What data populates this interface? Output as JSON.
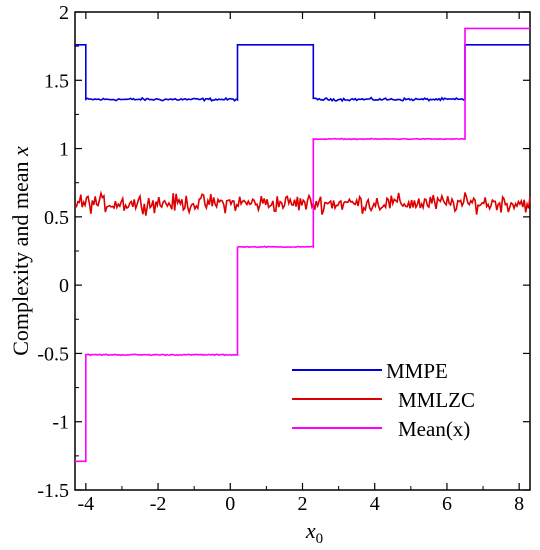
{
  "chart_data": {
    "type": "line",
    "xlabel": "x",
    "xlabel_subscript": "0",
    "ylabel_main": "Complexity and mean ",
    "ylabel_var": "x",
    "xlim": [
      -4.3,
      8.3
    ],
    "ylim": [
      -1.5,
      2.0
    ],
    "xticks": [
      -4,
      -2,
      0,
      2,
      4,
      6,
      8
    ],
    "xtick_labels": [
      "-4",
      "-2",
      "0",
      "2",
      "4",
      "6",
      "8"
    ],
    "yticks": [
      -1.5,
      -1,
      -0.5,
      0,
      0.5,
      1,
      1.5,
      2
    ],
    "ytick_labels": [
      "-1.5",
      "-1",
      "-0.5",
      "0",
      "0.5",
      "1",
      "1.5",
      "2"
    ],
    "legend_position": "bottom-right",
    "series": [
      {
        "name": "MMPE",
        "color": "#0000dd",
        "segments": [
          {
            "x_start": -4.3,
            "x_end": -4.0,
            "level": 1.76,
            "noise": 0.0
          },
          {
            "x_start": -4.0,
            "x_end": 0.2,
            "level": 1.36,
            "noise": 0.012
          },
          {
            "x_start": 0.2,
            "x_end": 2.3,
            "level": 1.76,
            "noise": 0.0
          },
          {
            "x_start": 2.3,
            "x_end": 6.5,
            "level": 1.36,
            "noise": 0.012
          },
          {
            "x_start": 6.5,
            "x_end": 8.3,
            "level": 1.76,
            "noise": 0.0
          }
        ]
      },
      {
        "name": "MMLZC",
        "color": "#dd0000",
        "segments": [
          {
            "x_start": -4.3,
            "x_end": 8.3,
            "level": 0.6,
            "noise": 0.06
          }
        ]
      },
      {
        "name": "Mean(x)",
        "color": "#ff00ff",
        "segments": [
          {
            "x_start": -4.3,
            "x_end": -4.0,
            "level": -1.29,
            "noise": 0.0
          },
          {
            "x_start": -4.0,
            "x_end": 0.2,
            "level": -0.51,
            "noise": 0.005
          },
          {
            "x_start": 0.2,
            "x_end": 2.3,
            "level": 0.28,
            "noise": 0.004
          },
          {
            "x_start": 2.3,
            "x_end": 6.5,
            "level": 1.07,
            "noise": 0.004
          },
          {
            "x_start": 6.5,
            "x_end": 8.3,
            "level": 1.88,
            "noise": 0.0
          }
        ]
      }
    ]
  }
}
